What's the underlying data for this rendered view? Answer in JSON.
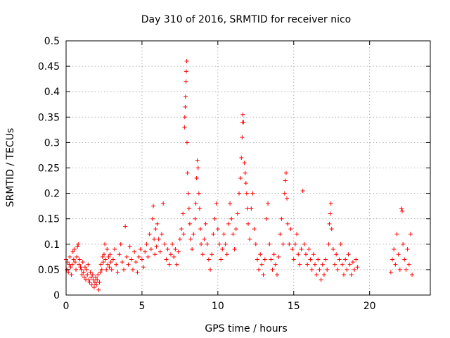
{
  "chart_data": {
    "type": "scatter",
    "title": "Day 310 of 2016, SRMTID for receiver nico",
    "xlabel": "GPS time / hours",
    "ylabel": "SRMTID / TECUs",
    "xlim": [
      0,
      24
    ],
    "ylim": [
      0,
      0.5
    ],
    "grid": true,
    "marker": "plus",
    "marker_color": "#ff0000",
    "x_ticks": [
      {
        "value": 0,
        "label": "0"
      },
      {
        "value": 5,
        "label": "5"
      },
      {
        "value": 10,
        "label": "10"
      },
      {
        "value": 15,
        "label": "15"
      },
      {
        "value": 20,
        "label": "20"
      }
    ],
    "y_ticks": [
      {
        "value": 0,
        "label": "0"
      },
      {
        "value": 0.05,
        "label": "0.05"
      },
      {
        "value": 0.1,
        "label": "0.1"
      },
      {
        "value": 0.15,
        "label": "0.15"
      },
      {
        "value": 0.2,
        "label": "0.2"
      },
      {
        "value": 0.25,
        "label": "0.25"
      },
      {
        "value": 0.3,
        "label": "0.3"
      },
      {
        "value": 0.35,
        "label": "0.35"
      },
      {
        "value": 0.4,
        "label": "0.4"
      },
      {
        "value": 0.45,
        "label": "0.45"
      },
      {
        "value": 0.5,
        "label": "0.5"
      }
    ],
    "series": [
      {
        "points": [
          [
            0.0,
            0.07
          ],
          [
            0.05,
            0.05
          ],
          [
            0.1,
            0.065
          ],
          [
            0.15,
            0.045
          ],
          [
            0.2,
            0.06
          ],
          [
            0.25,
            0.075
          ],
          [
            0.3,
            0.055
          ],
          [
            0.35,
            0.04
          ],
          [
            0.4,
            0.06
          ],
          [
            0.45,
            0.085
          ],
          [
            0.5,
            0.07
          ],
          [
            0.55,
            0.09
          ],
          [
            0.6,
            0.065
          ],
          [
            0.65,
            0.05
          ],
          [
            0.7,
            0.075
          ],
          [
            0.75,
            0.095
          ],
          [
            0.8,
            0.1
          ],
          [
            0.85,
            0.06
          ],
          [
            0.9,
            0.07
          ],
          [
            0.95,
            0.055
          ],
          [
            1.0,
            0.05
          ],
          [
            1.05,
            0.04
          ],
          [
            1.1,
            0.065
          ],
          [
            1.15,
            0.045
          ],
          [
            1.2,
            0.035
          ],
          [
            1.25,
            0.055
          ],
          [
            1.3,
            0.03
          ],
          [
            1.35,
            0.05
          ],
          [
            1.4,
            0.04
          ],
          [
            1.45,
            0.06
          ],
          [
            1.5,
            0.03
          ],
          [
            1.55,
            0.025
          ],
          [
            1.6,
            0.045
          ],
          [
            1.65,
            0.035
          ],
          [
            1.7,
            0.02
          ],
          [
            1.75,
            0.04
          ],
          [
            1.8,
            0.03
          ],
          [
            1.85,
            0.015
          ],
          [
            1.9,
            0.025
          ],
          [
            1.95,
            0.035
          ],
          [
            2.0,
            0.02
          ],
          [
            2.05,
            0.03
          ],
          [
            2.1,
            0.04
          ],
          [
            2.15,
            0.01
          ],
          [
            2.2,
            0.025
          ],
          [
            2.25,
            0.045
          ],
          [
            2.3,
            0.06
          ],
          [
            2.35,
            0.05
          ],
          [
            2.4,
            0.075
          ],
          [
            2.45,
            0.065
          ],
          [
            2.5,
            0.08
          ],
          [
            2.55,
            0.1
          ],
          [
            2.6,
            0.07
          ],
          [
            2.65,
            0.05
          ],
          [
            2.7,
            0.09
          ],
          [
            2.75,
            0.06
          ],
          [
            2.8,
            0.075
          ],
          [
            2.85,
            0.055
          ],
          [
            2.9,
            0.08
          ],
          [
            2.95,
            0.065
          ],
          [
            3.0,
            0.05
          ],
          [
            3.1,
            0.07
          ],
          [
            3.2,
            0.09
          ],
          [
            3.3,
            0.06
          ],
          [
            3.4,
            0.045
          ],
          [
            3.5,
            0.08
          ],
          [
            3.6,
            0.1
          ],
          [
            3.7,
            0.065
          ],
          [
            3.8,
            0.05
          ],
          [
            3.9,
            0.135
          ],
          [
            4.0,
            0.075
          ],
          [
            4.1,
            0.06
          ],
          [
            4.2,
            0.095
          ],
          [
            4.3,
            0.07
          ],
          [
            4.4,
            0.05
          ],
          [
            4.5,
            0.085
          ],
          [
            4.6,
            0.065
          ],
          [
            4.7,
            0.045
          ],
          [
            4.8,
            0.075
          ],
          [
            4.9,
            0.09
          ],
          [
            5.0,
            0.07
          ],
          [
            5.1,
            0.055
          ],
          [
            5.2,
            0.085
          ],
          [
            5.3,
            0.1
          ],
          [
            5.4,
            0.075
          ],
          [
            5.5,
            0.12
          ],
          [
            5.6,
            0.09
          ],
          [
            5.7,
            0.15
          ],
          [
            5.75,
            0.175
          ],
          [
            5.8,
            0.11
          ],
          [
            5.85,
            0.08
          ],
          [
            5.9,
            0.13
          ],
          [
            5.95,
            0.095
          ],
          [
            6.0,
            0.14
          ],
          [
            6.1,
            0.11
          ],
          [
            6.2,
            0.085
          ],
          [
            6.3,
            0.12
          ],
          [
            6.4,
            0.18
          ],
          [
            6.5,
            0.1
          ],
          [
            6.6,
            0.07
          ],
          [
            6.7,
            0.09
          ],
          [
            6.8,
            0.06
          ],
          [
            6.9,
            0.08
          ],
          [
            7.0,
            0.1
          ],
          [
            7.1,
            0.075
          ],
          [
            7.2,
            0.09
          ],
          [
            7.3,
            0.06
          ],
          [
            7.4,
            0.085
          ],
          [
            7.5,
            0.11
          ],
          [
            7.6,
            0.13
          ],
          [
            7.7,
            0.16
          ],
          [
            7.75,
            0.12
          ],
          [
            7.8,
            0.33
          ],
          [
            7.82,
            0.35
          ],
          [
            7.85,
            0.37
          ],
          [
            7.87,
            0.39
          ],
          [
            7.9,
            0.42
          ],
          [
            7.92,
            0.44
          ],
          [
            7.95,
            0.46
          ],
          [
            7.97,
            0.3
          ],
          [
            8.0,
            0.24
          ],
          [
            8.05,
            0.2
          ],
          [
            8.1,
            0.17
          ],
          [
            8.15,
            0.14
          ],
          [
            8.2,
            0.11
          ],
          [
            8.3,
            0.09
          ],
          [
            8.4,
            0.12
          ],
          [
            8.5,
            0.15
          ],
          [
            8.55,
            0.18
          ],
          [
            8.6,
            0.23
          ],
          [
            8.65,
            0.265
          ],
          [
            8.7,
            0.25
          ],
          [
            8.75,
            0.2
          ],
          [
            8.8,
            0.17
          ],
          [
            8.85,
            0.13
          ],
          [
            8.9,
            0.1
          ],
          [
            9.0,
            0.08
          ],
          [
            9.1,
            0.11
          ],
          [
            9.2,
            0.14
          ],
          [
            9.3,
            0.1
          ],
          [
            9.4,
            0.07
          ],
          [
            9.5,
            0.05
          ],
          [
            9.6,
            0.08
          ],
          [
            9.7,
            0.12
          ],
          [
            9.8,
            0.15
          ],
          [
            9.9,
            0.18
          ],
          [
            10.0,
            0.13
          ],
          [
            10.1,
            0.1
          ],
          [
            10.2,
            0.07
          ],
          [
            10.3,
            0.09
          ],
          [
            10.4,
            0.12
          ],
          [
            10.5,
            0.1
          ],
          [
            10.6,
            0.08
          ],
          [
            10.7,
            0.14
          ],
          [
            10.8,
            0.18
          ],
          [
            10.9,
            0.15
          ],
          [
            11.0,
            0.12
          ],
          [
            11.1,
            0.09
          ],
          [
            11.2,
            0.13
          ],
          [
            11.3,
            0.16
          ],
          [
            11.4,
            0.2
          ],
          [
            11.5,
            0.23
          ],
          [
            11.55,
            0.27
          ],
          [
            11.6,
            0.31
          ],
          [
            11.62,
            0.34
          ],
          [
            11.65,
            0.355
          ],
          [
            11.7,
            0.34
          ],
          [
            11.75,
            0.26
          ],
          [
            11.8,
            0.24
          ],
          [
            11.85,
            0.22
          ],
          [
            11.9,
            0.2
          ],
          [
            11.95,
            0.17
          ],
          [
            12.0,
            0.14
          ],
          [
            12.1,
            0.11
          ],
          [
            12.2,
            0.17
          ],
          [
            12.3,
            0.2
          ],
          [
            12.4,
            0.13
          ],
          [
            12.5,
            0.1
          ],
          [
            12.6,
            0.07
          ],
          [
            12.7,
            0.05
          ],
          [
            12.8,
            0.08
          ],
          [
            12.9,
            0.06
          ],
          [
            13.0,
            0.04
          ],
          [
            13.1,
            0.07
          ],
          [
            13.2,
            0.15
          ],
          [
            13.3,
            0.18
          ],
          [
            13.4,
            0.1
          ],
          [
            13.5,
            0.07
          ],
          [
            13.6,
            0.05
          ],
          [
            13.7,
            0.08
          ],
          [
            13.8,
            0.06
          ],
          [
            13.9,
            0.04
          ],
          [
            14.0,
            0.075
          ],
          [
            14.1,
            0.12
          ],
          [
            14.2,
            0.15
          ],
          [
            14.3,
            0.1
          ],
          [
            14.4,
            0.2
          ],
          [
            14.45,
            0.225
          ],
          [
            14.5,
            0.24
          ],
          [
            14.55,
            0.19
          ],
          [
            14.6,
            0.14
          ],
          [
            14.7,
            0.1
          ],
          [
            14.8,
            0.13
          ],
          [
            14.9,
            0.09
          ],
          [
            15.0,
            0.07
          ],
          [
            15.1,
            0.1
          ],
          [
            15.2,
            0.12
          ],
          [
            15.3,
            0.08
          ],
          [
            15.4,
            0.06
          ],
          [
            15.5,
            0.09
          ],
          [
            15.6,
            0.205
          ],
          [
            15.7,
            0.1
          ],
          [
            15.8,
            0.08
          ],
          [
            15.9,
            0.06
          ],
          [
            16.0,
            0.09
          ],
          [
            16.1,
            0.07
          ],
          [
            16.2,
            0.05
          ],
          [
            16.3,
            0.08
          ],
          [
            16.4,
            0.06
          ],
          [
            16.5,
            0.04
          ],
          [
            16.6,
            0.07
          ],
          [
            16.7,
            0.05
          ],
          [
            16.8,
            0.03
          ],
          [
            16.9,
            0.06
          ],
          [
            17.0,
            0.04
          ],
          [
            17.1,
            0.07
          ],
          [
            17.2,
            0.05
          ],
          [
            17.3,
            0.1
          ],
          [
            17.35,
            0.14
          ],
          [
            17.4,
            0.16
          ],
          [
            17.45,
            0.18
          ],
          [
            17.5,
            0.13
          ],
          [
            17.6,
            0.09
          ],
          [
            17.7,
            0.06
          ],
          [
            17.8,
            0.08
          ],
          [
            17.9,
            0.05
          ],
          [
            18.0,
            0.07
          ],
          [
            18.1,
            0.1
          ],
          [
            18.2,
            0.06
          ],
          [
            18.3,
            0.04
          ],
          [
            18.4,
            0.07
          ],
          [
            18.5,
            0.05
          ],
          [
            18.6,
            0.08
          ],
          [
            18.7,
            0.06
          ],
          [
            18.8,
            0.04
          ],
          [
            18.9,
            0.065
          ],
          [
            19.0,
            0.05
          ],
          [
            19.1,
            0.07
          ],
          [
            19.2,
            0.055
          ],
          [
            21.4,
            0.045
          ],
          [
            21.5,
            0.07
          ],
          [
            21.6,
            0.09
          ],
          [
            21.7,
            0.06
          ],
          [
            21.8,
            0.12
          ],
          [
            21.9,
            0.08
          ],
          [
            22.0,
            0.05
          ],
          [
            22.1,
            0.17
          ],
          [
            22.15,
            0.165
          ],
          [
            22.2,
            0.1
          ],
          [
            22.3,
            0.07
          ],
          [
            22.4,
            0.05
          ],
          [
            22.5,
            0.09
          ],
          [
            22.6,
            0.06
          ],
          [
            22.7,
            0.12
          ],
          [
            22.8,
            0.04
          ]
        ]
      }
    ]
  }
}
